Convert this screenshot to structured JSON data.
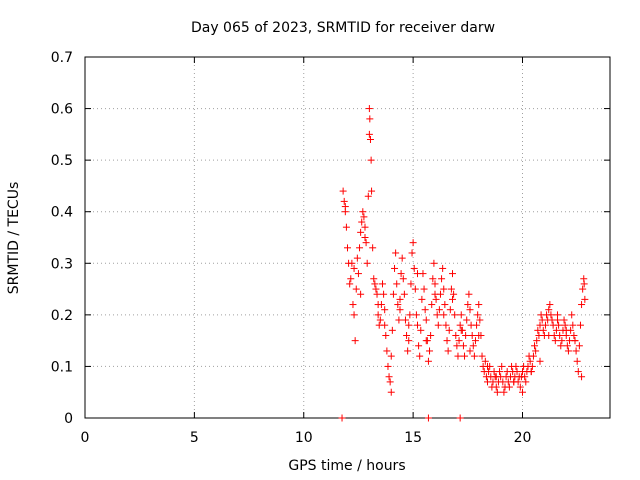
{
  "chart_data": {
    "type": "scatter",
    "title": "Day 065 of 2023, SRMTID for receiver darw",
    "xlabel": "GPS time / hours",
    "ylabel": "SRMTID / TECUs",
    "xlim": [
      0,
      24
    ],
    "ylim": [
      0,
      0.7
    ],
    "xticks": [
      0,
      5,
      10,
      15,
      20
    ],
    "yticks": [
      0,
      0.1,
      0.2,
      0.3,
      0.4,
      0.5,
      0.6,
      0.7
    ],
    "xtick_labels": [
      "0",
      "5",
      "10",
      "15",
      "20"
    ],
    "ytick_labels": [
      "0",
      "0.1",
      "0.2",
      "0.3",
      "0.4",
      "0.5",
      "0.6",
      "0.7"
    ],
    "grid": true,
    "marker": "+",
    "color": "#ff0000",
    "series": [
      {
        "name": "SRMTID",
        "x": [
          11.8,
          11.85,
          11.9,
          11.95,
          12.0,
          12.05,
          12.1,
          12.15,
          12.2,
          12.25,
          12.3,
          12.35,
          12.4,
          12.45,
          12.5,
          12.55,
          12.6,
          12.65,
          12.7,
          12.75,
          12.8,
          12.85,
          12.9,
          12.95,
          13.0,
          13.02,
          13.05,
          13.08,
          13.1,
          13.15,
          13.2,
          13.25,
          13.3,
          13.35,
          13.4,
          13.45,
          13.5,
          13.55,
          13.6,
          13.65,
          13.7,
          13.75,
          13.8,
          13.85,
          13.9,
          13.95,
          14.0,
          14.05,
          14.1,
          14.15,
          14.2,
          14.25,
          14.3,
          14.35,
          14.4,
          14.45,
          14.5,
          14.55,
          14.6,
          14.65,
          14.7,
          14.75,
          14.8,
          14.85,
          14.9,
          14.95,
          15.0,
          15.05,
          15.1,
          15.15,
          15.2,
          15.25,
          15.3,
          15.35,
          15.4,
          15.45,
          15.5,
          15.55,
          15.6,
          15.65,
          15.7,
          15.75,
          15.8,
          15.85,
          15.9,
          15.95,
          16.0,
          16.05,
          16.1,
          16.15,
          16.2,
          16.25,
          16.3,
          16.35,
          16.4,
          16.45,
          16.5,
          16.55,
          16.6,
          16.65,
          16.7,
          16.75,
          16.8,
          16.85,
          16.9,
          16.95,
          17.0,
          17.05,
          17.1,
          17.15,
          17.2,
          17.25,
          17.3,
          17.35,
          17.4,
          17.45,
          17.5,
          17.55,
          17.6,
          17.65,
          17.7,
          17.75,
          17.8,
          17.85,
          17.9,
          17.95,
          18.0,
          18.05,
          18.1,
          18.15,
          18.2,
          18.25,
          18.3,
          18.35,
          18.4,
          18.45,
          18.5,
          18.55,
          18.6,
          18.65,
          18.7,
          18.75,
          18.8,
          18.85,
          18.9,
          18.95,
          19.0,
          19.05,
          19.1,
          19.15,
          19.2,
          19.25,
          19.3,
          19.35,
          19.4,
          19.45,
          19.5,
          19.55,
          19.6,
          19.65,
          19.7,
          19.75,
          19.8,
          19.85,
          19.9,
          19.95,
          20.0,
          20.05,
          20.1,
          20.15,
          20.2,
          20.25,
          20.3,
          20.35,
          20.4,
          20.45,
          20.5,
          20.55,
          20.6,
          20.65,
          20.7,
          20.75,
          20.8,
          20.85,
          20.9,
          20.95,
          21.0,
          21.05,
          21.1,
          21.15,
          21.2,
          21.25,
          21.3,
          21.35,
          21.4,
          21.45,
          21.5,
          21.55,
          21.6,
          21.65,
          21.7,
          21.75,
          21.8,
          21.85,
          21.9,
          21.95,
          22.0,
          22.05,
          22.1,
          22.15,
          22.2,
          22.25,
          22.3,
          22.35,
          22.4,
          22.45,
          22.5,
          22.55,
          22.6,
          22.65,
          22.7,
          22.75,
          22.8,
          22.82,
          22.85,
          11.9,
          12.3,
          12.6,
          12.8,
          13.0,
          13.4,
          13.7,
          14.0,
          14.4,
          14.8,
          15.2,
          15.6,
          16.0,
          16.4,
          16.8,
          17.2,
          17.6,
          18.0,
          18.4,
          18.8,
          19.2,
          19.6,
          20.0,
          20.4,
          20.8,
          21.2,
          21.6,
          22.0,
          22.4,
          22.7,
          11.75,
          15.7,
          17.15
        ],
        "y": [
          0.44,
          0.42,
          0.4,
          0.37,
          0.33,
          0.3,
          0.26,
          0.27,
          0.3,
          0.22,
          0.2,
          0.15,
          0.25,
          0.31,
          0.28,
          0.33,
          0.36,
          0.38,
          0.4,
          0.39,
          0.37,
          0.34,
          0.3,
          0.43,
          0.6,
          0.58,
          0.54,
          0.5,
          0.44,
          0.33,
          0.27,
          0.26,
          0.25,
          0.24,
          0.2,
          0.18,
          0.19,
          0.22,
          0.26,
          0.24,
          0.21,
          0.16,
          0.13,
          0.1,
          0.08,
          0.07,
          0.12,
          0.17,
          0.24,
          0.29,
          0.32,
          0.26,
          0.22,
          0.19,
          0.23,
          0.28,
          0.31,
          0.27,
          0.24,
          0.19,
          0.16,
          0.13,
          0.15,
          0.2,
          0.26,
          0.32,
          0.34,
          0.29,
          0.25,
          0.2,
          0.18,
          0.14,
          0.12,
          0.17,
          0.23,
          0.28,
          0.25,
          0.21,
          0.19,
          0.15,
          0.11,
          0.13,
          0.16,
          0.22,
          0.27,
          0.3,
          0.26,
          0.23,
          0.2,
          0.18,
          0.21,
          0.24,
          0.27,
          0.29,
          0.25,
          0.22,
          0.18,
          0.15,
          0.13,
          0.17,
          0.21,
          0.25,
          0.28,
          0.24,
          0.2,
          0.16,
          0.14,
          0.12,
          0.15,
          0.18,
          0.2,
          0.17,
          0.14,
          0.12,
          0.16,
          0.19,
          0.22,
          0.24,
          0.21,
          0.18,
          0.16,
          0.14,
          0.12,
          0.15,
          0.18,
          0.2,
          0.22,
          0.19,
          0.16,
          0.12,
          0.1,
          0.09,
          0.11,
          0.08,
          0.07,
          0.09,
          0.1,
          0.08,
          0.06,
          0.07,
          0.09,
          0.08,
          0.06,
          0.05,
          0.07,
          0.09,
          0.08,
          0.1,
          0.07,
          0.05,
          0.06,
          0.08,
          0.09,
          0.07,
          0.06,
          0.08,
          0.1,
          0.09,
          0.07,
          0.08,
          0.1,
          0.09,
          0.07,
          0.08,
          0.06,
          0.08,
          0.09,
          0.1,
          0.08,
          0.07,
          0.09,
          0.1,
          0.12,
          0.11,
          0.09,
          0.1,
          0.12,
          0.14,
          0.13,
          0.15,
          0.17,
          0.16,
          0.18,
          0.2,
          0.19,
          0.17,
          0.16,
          0.18,
          0.2,
          0.19,
          0.21,
          0.22,
          0.2,
          0.19,
          0.18,
          0.16,
          0.15,
          0.17,
          0.19,
          0.18,
          0.16,
          0.14,
          0.15,
          0.17,
          0.19,
          0.18,
          0.16,
          0.14,
          0.13,
          0.15,
          0.17,
          0.2,
          0.18,
          0.16,
          0.15,
          0.13,
          0.11,
          0.09,
          0.14,
          0.18,
          0.22,
          0.25,
          0.27,
          0.26,
          0.23,
          0.41,
          0.29,
          0.24,
          0.35,
          0.55,
          0.22,
          0.18,
          0.05,
          0.21,
          0.18,
          0.28,
          0.15,
          0.24,
          0.2,
          0.23,
          0.17,
          0.13,
          0.16,
          0.1,
          0.08,
          0.06,
          0.07,
          0.05,
          0.09,
          0.11,
          0.16,
          0.2,
          0.17,
          0.15,
          0.08,
          0.0,
          0.0,
          0.0
        ]
      }
    ]
  }
}
